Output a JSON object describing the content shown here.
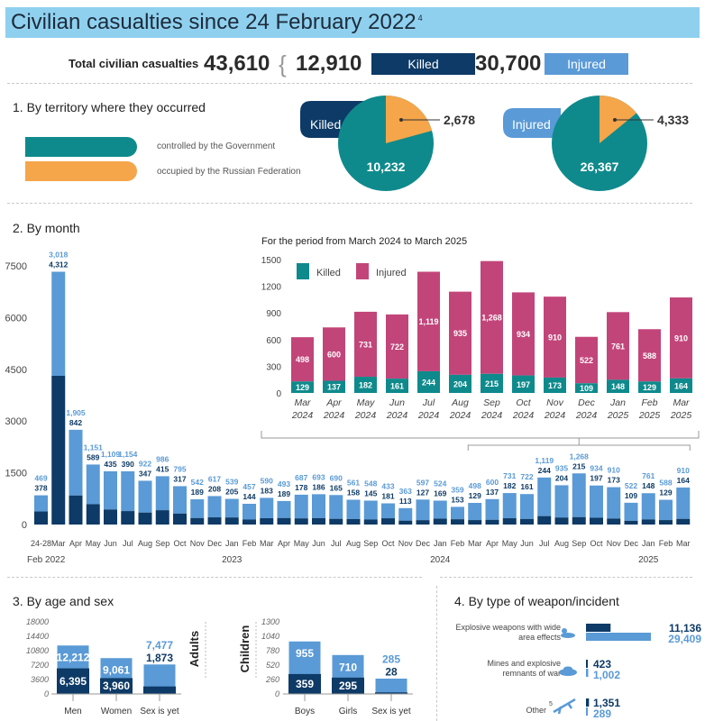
{
  "title": {
    "text": "Civilian casualties since 24 February 2022",
    "sup": "4"
  },
  "totals": {
    "label": "Total civilian casualties",
    "total": "43,610",
    "killed": "12,910",
    "killed_label": "Killed",
    "injured": "30,700",
    "injured_label": "Injured"
  },
  "colors": {
    "killed": "#1e5a96",
    "injured": "#5a9ad6",
    "teal": "#0f8a8c",
    "orange": "#f5a54a",
    "magenta": "#c2457a",
    "navy": "#0d3a66"
  },
  "territory": {
    "heading": "1. By territory where they occurred",
    "legend_gov": "controlled by the Government",
    "legend_ru": "occupied by the Russian Federation",
    "killed_label": "Killed",
    "killed_gov": "10,232",
    "killed_ru": "2,678",
    "injured_label": "Injured",
    "injured_gov": "26,367",
    "injured_ru": "4,333"
  },
  "month": {
    "heading": "2. By month",
    "inset_title": "For the period from March 2024 to March 2025"
  },
  "age": {
    "heading": "3. By age and sex",
    "adults_label": "Adults",
    "children_label": "Children"
  },
  "weapon": {
    "heading": "4. By type of weapon/incident",
    "items": [
      {
        "label1": "Explosive weapons with wide",
        "label2": "area effects",
        "killed": "11,136",
        "injured": "29,409"
      },
      {
        "label1": "Mines and explosive",
        "label2": "remnants of war",
        "killed": "423",
        "injured": "1,002"
      },
      {
        "label1": "Other",
        "label2": "",
        "sup": "5",
        "killed": "1,351",
        "injured": "289"
      }
    ]
  },
  "chart_data": [
    {
      "type": "bar",
      "title": "By month",
      "ylim": [
        0,
        7500
      ],
      "yticks": [
        0,
        1500,
        3000,
        4500,
        6000,
        7500
      ],
      "categories": [
        "24-28",
        "Mar",
        "Apr",
        "May",
        "Jun",
        "Jul",
        "Aug",
        "Sep",
        "Oct",
        "Nov",
        "Dec",
        "Jan",
        "Feb",
        "Mar",
        "Apr",
        "May",
        "Jun",
        "Jul",
        "Aug",
        "Sep",
        "Oct",
        "Nov",
        "Dec",
        "Jan",
        "Feb",
        "Mar",
        "Apr",
        "May",
        "Jun",
        "Jul",
        "Aug",
        "Sep",
        "Oct",
        "Nov",
        "Dec",
        "Jan",
        "Feb",
        "Mar"
      ],
      "year_labels": [
        {
          "text": "Feb 2022",
          "index": 0
        },
        {
          "text": "2023",
          "index": 11
        },
        {
          "text": "2024",
          "index": 23
        },
        {
          "text": "2025",
          "index": 35
        }
      ],
      "series": [
        {
          "name": "Killed",
          "values": [
            378,
            4312,
            842,
            589,
            435,
            390,
            347,
            415,
            317,
            189,
            208,
            205,
            144,
            183,
            189,
            178,
            186,
            165,
            158,
            145,
            181,
            113,
            127,
            169,
            153,
            129,
            137,
            182,
            161,
            244,
            204,
            215,
            197,
            173,
            109,
            148,
            129,
            164
          ]
        },
        {
          "name": "Injured",
          "values": [
            469,
            3018,
            1905,
            1151,
            1109,
            1154,
            922,
            986,
            795,
            542,
            617,
            539,
            457,
            590,
            493,
            687,
            693,
            690,
            561,
            548,
            433,
            363,
            597,
            524,
            359,
            498,
            600,
            731,
            722,
            1119,
            935,
            1268,
            934,
            910,
            522,
            761,
            588,
            910
          ]
        }
      ]
    },
    {
      "type": "bar",
      "title": "For the period from March 2024 to March 2025",
      "ylim": [
        0,
        1500
      ],
      "yticks": [
        0,
        300,
        600,
        900,
        1200,
        1500
      ],
      "categories": [
        "Mar 2024",
        "Apr 2024",
        "May 2024",
        "Jun 2024",
        "Jul 2024",
        "Aug 2024",
        "Sep 2024",
        "Oct 2024",
        "Nov 2024",
        "Dec 2024",
        "Jan 2025",
        "Feb 2025",
        "Mar 2025"
      ],
      "legend": [
        "Killed",
        "Injured"
      ],
      "series": [
        {
          "name": "Killed",
          "values": [
            129,
            137,
            182,
            161,
            244,
            204,
            215,
            197,
            173,
            109,
            148,
            129,
            164
          ]
        },
        {
          "name": "Injured",
          "values": [
            498,
            600,
            731,
            722,
            1119,
            935,
            1268,
            934,
            910,
            522,
            761,
            588,
            910
          ]
        }
      ]
    },
    {
      "type": "bar",
      "title": "Adults",
      "ylim": [
        0,
        18000
      ],
      "yticks": [
        0,
        3600,
        7200,
        10800,
        14400,
        18000
      ],
      "categories": [
        "Men",
        "Women",
        "Sex is yet unknown"
      ],
      "series": [
        {
          "name": "Killed",
          "values": [
            6395,
            3960,
            1873
          ]
        },
        {
          "name": "Injured",
          "values": [
            12212,
            9061,
            7477
          ]
        }
      ]
    },
    {
      "type": "bar",
      "title": "Children",
      "ylim": [
        0,
        1300
      ],
      "yticks": [
        0,
        260,
        520,
        780,
        1040,
        1300
      ],
      "categories": [
        "Boys",
        "Girls",
        "Sex is yet unknown"
      ],
      "series": [
        {
          "name": "Killed",
          "values": [
            359,
            295,
            28
          ]
        },
        {
          "name": "Injured",
          "values": [
            955,
            710,
            285
          ]
        }
      ]
    }
  ]
}
